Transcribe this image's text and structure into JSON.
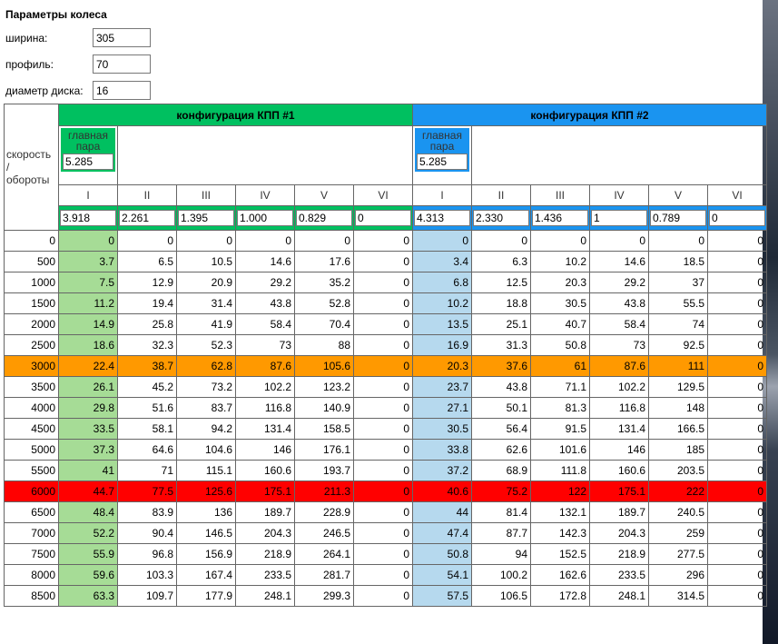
{
  "params": {
    "title": "Параметры колеса",
    "width_label": "ширина:",
    "width_value": "305",
    "profile_label": "профиль:",
    "profile_value": "70",
    "diameter_label": "диаметр диска:",
    "diameter_value": "16"
  },
  "header": {
    "speed_label_line1": "скорость",
    "speed_label_line2": "/",
    "speed_label_line3": "обороты",
    "config1_title": "конфигурация КПП #1",
    "config2_title": "конфигурация КПП #2",
    "main_pair_label_line1": "главная",
    "main_pair_label_line2": "пара",
    "main_pair1_value": "5.285",
    "main_pair2_value": "5.285",
    "gears": [
      "I",
      "II",
      "III",
      "IV",
      "V",
      "VI"
    ]
  },
  "ratios1": [
    "3.918",
    "2.261",
    "1.395",
    "1.000",
    "0.829",
    "0"
  ],
  "ratios2": [
    "4.313",
    "2.330",
    "1.436",
    "1",
    "0.789",
    "0"
  ],
  "rows": [
    {
      "rpm": "0",
      "c1": [
        "0",
        "0",
        "0",
        "0",
        "0",
        "0"
      ],
      "c2": [
        "0",
        "0",
        "0",
        "0",
        "0",
        "0"
      ]
    },
    {
      "rpm": "500",
      "c1": [
        "3.7",
        "6.5",
        "10.5",
        "14.6",
        "17.6",
        "0"
      ],
      "c2": [
        "3.4",
        "6.3",
        "10.2",
        "14.6",
        "18.5",
        "0"
      ]
    },
    {
      "rpm": "1000",
      "c1": [
        "7.5",
        "12.9",
        "20.9",
        "29.2",
        "35.2",
        "0"
      ],
      "c2": [
        "6.8",
        "12.5",
        "20.3",
        "29.2",
        "37",
        "0"
      ]
    },
    {
      "rpm": "1500",
      "c1": [
        "11.2",
        "19.4",
        "31.4",
        "43.8",
        "52.8",
        "0"
      ],
      "c2": [
        "10.2",
        "18.8",
        "30.5",
        "43.8",
        "55.5",
        "0"
      ]
    },
    {
      "rpm": "2000",
      "c1": [
        "14.9",
        "25.8",
        "41.9",
        "58.4",
        "70.4",
        "0"
      ],
      "c2": [
        "13.5",
        "25.1",
        "40.7",
        "58.4",
        "74",
        "0"
      ]
    },
    {
      "rpm": "2500",
      "c1": [
        "18.6",
        "32.3",
        "52.3",
        "73",
        "88",
        "0"
      ],
      "c2": [
        "16.9",
        "31.3",
        "50.8",
        "73",
        "92.5",
        "0"
      ]
    },
    {
      "rpm": "3000",
      "c1": [
        "22.4",
        "38.7",
        "62.8",
        "87.6",
        "105.6",
        "0"
      ],
      "c2": [
        "20.3",
        "37.6",
        "61",
        "87.6",
        "111",
        "0"
      ],
      "highlight": "orange"
    },
    {
      "rpm": "3500",
      "c1": [
        "26.1",
        "45.2",
        "73.2",
        "102.2",
        "123.2",
        "0"
      ],
      "c2": [
        "23.7",
        "43.8",
        "71.1",
        "102.2",
        "129.5",
        "0"
      ]
    },
    {
      "rpm": "4000",
      "c1": [
        "29.8",
        "51.6",
        "83.7",
        "116.8",
        "140.9",
        "0"
      ],
      "c2": [
        "27.1",
        "50.1",
        "81.3",
        "116.8",
        "148",
        "0"
      ]
    },
    {
      "rpm": "4500",
      "c1": [
        "33.5",
        "58.1",
        "94.2",
        "131.4",
        "158.5",
        "0"
      ],
      "c2": [
        "30.5",
        "56.4",
        "91.5",
        "131.4",
        "166.5",
        "0"
      ]
    },
    {
      "rpm": "5000",
      "c1": [
        "37.3",
        "64.6",
        "104.6",
        "146",
        "176.1",
        "0"
      ],
      "c2": [
        "33.8",
        "62.6",
        "101.6",
        "146",
        "185",
        "0"
      ]
    },
    {
      "rpm": "5500",
      "c1": [
        "41",
        "71",
        "115.1",
        "160.6",
        "193.7",
        "0"
      ],
      "c2": [
        "37.2",
        "68.9",
        "111.8",
        "160.6",
        "203.5",
        "0"
      ]
    },
    {
      "rpm": "6000",
      "c1": [
        "44.7",
        "77.5",
        "125.6",
        "175.1",
        "211.3",
        "0"
      ],
      "c2": [
        "40.6",
        "75.2",
        "122",
        "175.1",
        "222",
        "0"
      ],
      "highlight": "red"
    },
    {
      "rpm": "6500",
      "c1": [
        "48.4",
        "83.9",
        "136",
        "189.7",
        "228.9",
        "0"
      ],
      "c2": [
        "44",
        "81.4",
        "132.1",
        "189.7",
        "240.5",
        "0"
      ]
    },
    {
      "rpm": "7000",
      "c1": [
        "52.2",
        "90.4",
        "146.5",
        "204.3",
        "246.5",
        "0"
      ],
      "c2": [
        "47.4",
        "87.7",
        "142.3",
        "204.3",
        "259",
        "0"
      ]
    },
    {
      "rpm": "7500",
      "c1": [
        "55.9",
        "96.8",
        "156.9",
        "218.9",
        "264.1",
        "0"
      ],
      "c2": [
        "50.8",
        "94",
        "152.5",
        "218.9",
        "277.5",
        "0"
      ]
    },
    {
      "rpm": "8000",
      "c1": [
        "59.6",
        "103.3",
        "167.4",
        "233.5",
        "281.7",
        "0"
      ],
      "c2": [
        "54.1",
        "100.2",
        "162.6",
        "233.5",
        "296",
        "0"
      ]
    },
    {
      "rpm": "8500",
      "c1": [
        "63.3",
        "109.7",
        "177.9",
        "248.1",
        "299.3",
        "0"
      ],
      "c2": [
        "57.5",
        "106.5",
        "172.8",
        "248.1",
        "314.5",
        "0"
      ]
    }
  ],
  "colors": {
    "config1": "#00c060",
    "config2": "#1a94f0",
    "first_gear1": "#a6dc96",
    "first_gear2": "#b6d9ee",
    "highlight_orange": "#ff9900",
    "highlight_red": "#ff0000"
  }
}
